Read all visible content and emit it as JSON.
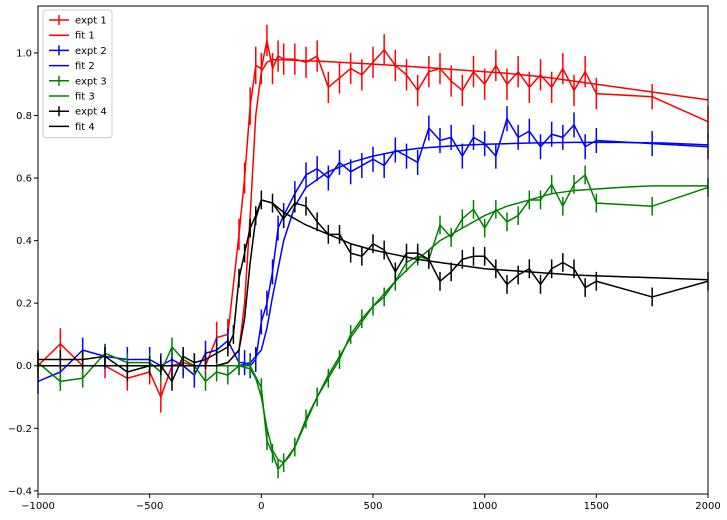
{
  "chart_data": {
    "type": "line",
    "title": "",
    "xlabel": "",
    "ylabel": "",
    "xlim": [
      -1000,
      2000
    ],
    "ylim": [
      -0.41,
      1.15
    ],
    "grid": false,
    "legend_position": "top-left",
    "x_ticks": [
      -1000,
      -500,
      0,
      500,
      1000,
      1500,
      2000
    ],
    "x_tick_labels": [
      "−1000",
      "−500",
      "0",
      "500",
      "1000",
      "1500",
      "2000"
    ],
    "y_ticks": [
      -0.4,
      -0.2,
      0.0,
      0.2,
      0.4,
      0.6,
      0.8,
      1.0
    ],
    "y_tick_labels": [
      "−0.4",
      "−0.2",
      "0.0",
      "0.2",
      "0.4",
      "0.6",
      "0.8",
      "1.0"
    ],
    "series": [
      {
        "name": "expt 1",
        "kind": "errorbar",
        "color": "#ff0000",
        "x": [
          -1000,
          -900,
          -800,
          -700,
          -600,
          -500,
          -450,
          -400,
          -350,
          -300,
          -250,
          -200,
          -150,
          -100,
          -75,
          -50,
          -25,
          0,
          25,
          50,
          75,
          100,
          150,
          200,
          250,
          300,
          350,
          400,
          450,
          500,
          550,
          600,
          650,
          700,
          750,
          800,
          850,
          900,
          950,
          1000,
          1050,
          1100,
          1150,
          1200,
          1250,
          1300,
          1350,
          1400,
          1450,
          1500,
          1750,
          2000
        ],
        "y": [
          0.0,
          0.07,
          0.0,
          0.0,
          -0.04,
          -0.02,
          -0.1,
          0.0,
          0.01,
          0.0,
          0.0,
          0.09,
          0.1,
          0.42,
          0.6,
          0.83,
          0.96,
          0.95,
          1.04,
          0.95,
          0.99,
          0.98,
          0.98,
          0.97,
          0.99,
          0.89,
          0.92,
          0.95,
          0.93,
          0.97,
          1.01,
          0.96,
          0.93,
          0.88,
          0.94,
          0.95,
          0.91,
          0.88,
          0.94,
          0.9,
          0.96,
          0.9,
          0.94,
          0.89,
          0.93,
          0.89,
          0.95,
          0.88,
          0.94,
          0.87,
          0.86,
          0.78
        ],
        "err": [
          0.04,
          0.05,
          0.04,
          0.04,
          0.04,
          0.04,
          0.05,
          0.04,
          0.04,
          0.04,
          0.04,
          0.05,
          0.05,
          0.05,
          0.05,
          0.06,
          0.06,
          0.05,
          0.05,
          0.05,
          0.05,
          0.05,
          0.05,
          0.05,
          0.05,
          0.05,
          0.05,
          0.05,
          0.05,
          0.05,
          0.05,
          0.05,
          0.05,
          0.05,
          0.05,
          0.05,
          0.05,
          0.05,
          0.05,
          0.05,
          0.05,
          0.05,
          0.05,
          0.05,
          0.05,
          0.05,
          0.05,
          0.05,
          0.05,
          0.05,
          0.04,
          0.05
        ]
      },
      {
        "name": "fit 1",
        "kind": "line",
        "color": "#ff0000",
        "x": [
          -1000,
          -500,
          -200,
          -150,
          -100,
          -75,
          -50,
          -25,
          0,
          25,
          50,
          100,
          200,
          300,
          400,
          500,
          600,
          700,
          800,
          900,
          1000,
          1100,
          1200,
          1300,
          1400,
          1500,
          1750,
          2000
        ],
        "y": [
          0.0,
          0.0,
          0.0,
          0.01,
          0.05,
          0.2,
          0.48,
          0.8,
          0.94,
          0.97,
          0.978,
          0.978,
          0.975,
          0.972,
          0.968,
          0.964,
          0.96,
          0.955,
          0.95,
          0.945,
          0.94,
          0.935,
          0.928,
          0.92,
          0.91,
          0.9,
          0.875,
          0.85
        ]
      },
      {
        "name": "expt 2",
        "kind": "errorbar",
        "color": "#0000ff",
        "x": [
          -1000,
          -900,
          -800,
          -700,
          -600,
          -500,
          -450,
          -400,
          -350,
          -300,
          -250,
          -200,
          -150,
          -100,
          -75,
          -50,
          -25,
          0,
          25,
          50,
          75,
          100,
          150,
          200,
          250,
          300,
          350,
          400,
          450,
          500,
          550,
          600,
          650,
          700,
          750,
          800,
          850,
          900,
          950,
          1000,
          1050,
          1100,
          1150,
          1200,
          1250,
          1300,
          1350,
          1400,
          1450,
          1500,
          1750,
          2000
        ],
        "y": [
          -0.05,
          -0.02,
          0.05,
          0.03,
          0.02,
          0.02,
          0.0,
          0.02,
          0.0,
          -0.03,
          0.04,
          0.05,
          0.08,
          0.01,
          0.01,
          0.0,
          0.02,
          0.14,
          0.2,
          0.3,
          0.44,
          0.48,
          0.55,
          0.61,
          0.63,
          0.6,
          0.65,
          0.62,
          0.64,
          0.66,
          0.64,
          0.69,
          0.67,
          0.65,
          0.76,
          0.72,
          0.73,
          0.67,
          0.73,
          0.71,
          0.67,
          0.79,
          0.73,
          0.75,
          0.7,
          0.74,
          0.73,
          0.77,
          0.7,
          0.72,
          0.71,
          0.7
        ],
        "err": [
          0.04,
          0.04,
          0.04,
          0.04,
          0.04,
          0.04,
          0.04,
          0.04,
          0.04,
          0.04,
          0.04,
          0.04,
          0.04,
          0.04,
          0.04,
          0.04,
          0.04,
          0.04,
          0.04,
          0.04,
          0.04,
          0.04,
          0.04,
          0.04,
          0.04,
          0.04,
          0.04,
          0.04,
          0.04,
          0.04,
          0.04,
          0.04,
          0.04,
          0.04,
          0.04,
          0.04,
          0.04,
          0.04,
          0.04,
          0.04,
          0.04,
          0.04,
          0.04,
          0.04,
          0.04,
          0.04,
          0.04,
          0.04,
          0.04,
          0.04,
          0.04,
          0.04
        ]
      },
      {
        "name": "fit 2",
        "kind": "line",
        "color": "#0000ff",
        "x": [
          -1000,
          -500,
          -100,
          -50,
          0,
          25,
          50,
          100,
          150,
          200,
          300,
          400,
          500,
          600,
          700,
          800,
          900,
          1000,
          1200,
          1400,
          1600,
          1800,
          2000
        ],
        "y": [
          0.0,
          0.0,
          0.0,
          0.01,
          0.05,
          0.12,
          0.22,
          0.4,
          0.51,
          0.57,
          0.62,
          0.65,
          0.67,
          0.685,
          0.695,
          0.7,
          0.705,
          0.708,
          0.712,
          0.714,
          0.714,
          0.712,
          0.706
        ]
      },
      {
        "name": "expt 3",
        "kind": "errorbar",
        "color": "#008000",
        "x": [
          -1000,
          -900,
          -800,
          -700,
          -600,
          -500,
          -450,
          -400,
          -350,
          -300,
          -250,
          -200,
          -150,
          -100,
          -50,
          0,
          25,
          50,
          75,
          100,
          150,
          200,
          250,
          300,
          350,
          400,
          450,
          500,
          550,
          600,
          650,
          700,
          750,
          800,
          850,
          900,
          950,
          1000,
          1050,
          1100,
          1150,
          1200,
          1250,
          1300,
          1350,
          1400,
          1450,
          1500,
          1750,
          2000
        ],
        "y": [
          0.01,
          -0.05,
          -0.04,
          0.04,
          0.01,
          0.01,
          -0.02,
          0.06,
          0.02,
          0.0,
          -0.05,
          -0.02,
          -0.03,
          0.0,
          0.0,
          -0.07,
          -0.24,
          -0.28,
          -0.33,
          -0.31,
          -0.26,
          -0.17,
          -0.1,
          -0.04,
          0.02,
          0.1,
          0.15,
          0.19,
          0.22,
          0.27,
          0.33,
          0.35,
          0.34,
          0.45,
          0.41,
          0.47,
          0.5,
          0.44,
          0.5,
          0.46,
          0.48,
          0.53,
          0.53,
          0.58,
          0.51,
          0.58,
          0.61,
          0.52,
          0.51,
          0.57
        ],
        "err": [
          0.03,
          0.03,
          0.03,
          0.03,
          0.03,
          0.03,
          0.03,
          0.03,
          0.03,
          0.03,
          0.03,
          0.03,
          0.03,
          0.03,
          0.03,
          0.03,
          0.03,
          0.03,
          0.03,
          0.03,
          0.03,
          0.03,
          0.03,
          0.03,
          0.03,
          0.03,
          0.03,
          0.03,
          0.03,
          0.03,
          0.03,
          0.03,
          0.03,
          0.03,
          0.03,
          0.03,
          0.03,
          0.03,
          0.03,
          0.03,
          0.03,
          0.03,
          0.03,
          0.03,
          0.03,
          0.03,
          0.03,
          0.03,
          0.03,
          0.03
        ]
      },
      {
        "name": "fit 3",
        "kind": "line",
        "color": "#008000",
        "x": [
          -1000,
          -500,
          -100,
          -50,
          -25,
          0,
          25,
          50,
          75,
          100,
          125,
          150,
          200,
          250,
          300,
          400,
          500,
          600,
          700,
          800,
          900,
          1000,
          1100,
          1200,
          1300,
          1400,
          1500,
          1600,
          1750,
          2000
        ],
        "y": [
          0.0,
          0.0,
          0.0,
          -0.01,
          -0.04,
          -0.1,
          -0.2,
          -0.27,
          -0.3,
          -0.31,
          -0.29,
          -0.26,
          -0.18,
          -0.1,
          -0.03,
          0.09,
          0.19,
          0.27,
          0.34,
          0.4,
          0.44,
          0.48,
          0.51,
          0.53,
          0.55,
          0.56,
          0.565,
          0.57,
          0.575,
          0.575
        ]
      },
      {
        "name": "expt 4",
        "kind": "errorbar",
        "color": "#000000",
        "x": [
          -1000,
          -900,
          -800,
          -700,
          -600,
          -500,
          -450,
          -400,
          -350,
          -300,
          -250,
          -200,
          -150,
          -125,
          -100,
          -75,
          -50,
          -25,
          0,
          50,
          100,
          150,
          200,
          250,
          300,
          350,
          400,
          450,
          500,
          550,
          600,
          650,
          700,
          750,
          800,
          850,
          900,
          950,
          1000,
          1050,
          1100,
          1150,
          1200,
          1250,
          1300,
          1350,
          1400,
          1450,
          1500,
          1750,
          2000
        ],
        "y": [
          0.02,
          0.02,
          0.02,
          0.03,
          -0.02,
          0.0,
          0.0,
          -0.05,
          0.03,
          0.01,
          0.02,
          0.04,
          0.06,
          0.1,
          0.28,
          0.36,
          0.44,
          0.48,
          0.53,
          0.52,
          0.47,
          0.52,
          0.51,
          0.46,
          0.42,
          0.42,
          0.36,
          0.35,
          0.39,
          0.37,
          0.3,
          0.36,
          0.36,
          0.34,
          0.27,
          0.3,
          0.34,
          0.35,
          0.35,
          0.31,
          0.26,
          0.29,
          0.31,
          0.26,
          0.31,
          0.33,
          0.31,
          0.25,
          0.27,
          0.22,
          0.27
        ],
        "err": [
          0.03,
          0.03,
          0.03,
          0.03,
          0.03,
          0.03,
          0.03,
          0.03,
          0.03,
          0.03,
          0.03,
          0.03,
          0.03,
          0.03,
          0.03,
          0.03,
          0.03,
          0.03,
          0.03,
          0.03,
          0.03,
          0.03,
          0.03,
          0.03,
          0.03,
          0.03,
          0.03,
          0.03,
          0.03,
          0.03,
          0.03,
          0.03,
          0.03,
          0.03,
          0.03,
          0.03,
          0.03,
          0.03,
          0.03,
          0.03,
          0.03,
          0.03,
          0.03,
          0.03,
          0.03,
          0.03,
          0.03,
          0.03,
          0.03,
          0.03,
          0.03
        ]
      },
      {
        "name": "fit 4",
        "kind": "line",
        "color": "#000000",
        "x": [
          -1000,
          -500,
          -200,
          -150,
          -100,
          -75,
          -50,
          -25,
          0,
          50,
          100,
          200,
          300,
          400,
          500,
          600,
          700,
          800,
          900,
          1000,
          1200,
          1400,
          1600,
          1800,
          2000
        ],
        "y": [
          0.0,
          0.0,
          0.0,
          0.01,
          0.05,
          0.15,
          0.33,
          0.47,
          0.53,
          0.52,
          0.49,
          0.45,
          0.42,
          0.39,
          0.37,
          0.355,
          0.34,
          0.33,
          0.32,
          0.31,
          0.3,
          0.29,
          0.285,
          0.28,
          0.275
        ]
      }
    ]
  }
}
